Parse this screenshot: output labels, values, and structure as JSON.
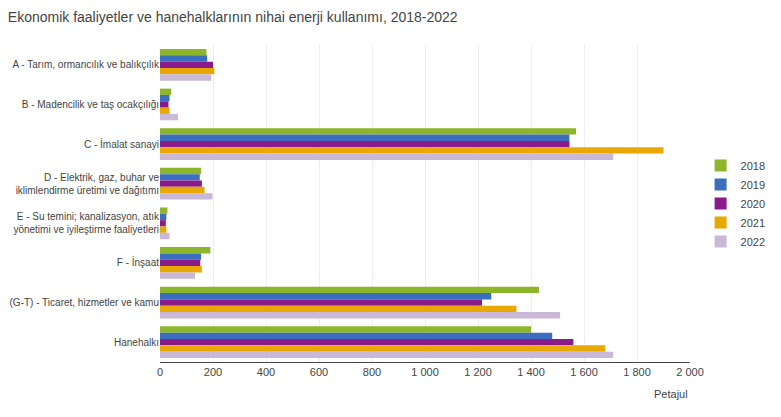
{
  "chart_data": {
    "type": "bar",
    "orientation": "horizontal",
    "title": "Ekonomik faaliyetler ve hanehalklarının nihai enerji kullanımı, 2018-2022",
    "xlabel": "Petajul",
    "categories": [
      "A - Tarım, ormancılık ve balıkçılık",
      "B - Madencilik ve taş ocakçılığı",
      "C - İmalat sanayi",
      "D - Elektrik, gaz, buhar ve\niklimlendirme üretimi ve dağıtımı",
      "E - Su temini; kanalizasyon, atık\nyönetimi ve iyileştirme faaliyetleri",
      "F - İnşaat",
      "(G-T) - Ticaret, hizmetler ve kamu",
      "Hanehalkı"
    ],
    "series": [
      {
        "name": "2018",
        "color": "#8db52a",
        "values": [
          175,
          42,
          1570,
          155,
          28,
          190,
          1430,
          1400
        ]
      },
      {
        "name": "2019",
        "color": "#3b6ebf",
        "values": [
          178,
          36,
          1545,
          150,
          24,
          155,
          1250,
          1480
        ]
      },
      {
        "name": "2020",
        "color": "#8b1a8b",
        "values": [
          200,
          32,
          1545,
          158,
          22,
          152,
          1215,
          1560
        ]
      },
      {
        "name": "2021",
        "color": "#e8a800",
        "values": [
          205,
          36,
          1900,
          168,
          24,
          158,
          1345,
          1680
        ]
      },
      {
        "name": "2022",
        "color": "#c9b8d8",
        "values": [
          193,
          68,
          1710,
          198,
          36,
          132,
          1510,
          1710
        ]
      }
    ],
    "xlim": [
      0,
      2000
    ],
    "xticks": [
      0,
      200,
      400,
      600,
      800,
      {
        "value": 1000,
        "label": "1 000"
      },
      {
        "value": 1200,
        "label": "1 200"
      },
      {
        "value": 1400,
        "label": "1 400"
      },
      {
        "value": 1600,
        "label": "1 600"
      },
      {
        "value": 1800,
        "label": "1 800"
      },
      {
        "value": 2000,
        "label": "2 000"
      }
    ],
    "grid": true,
    "legend": "right"
  }
}
